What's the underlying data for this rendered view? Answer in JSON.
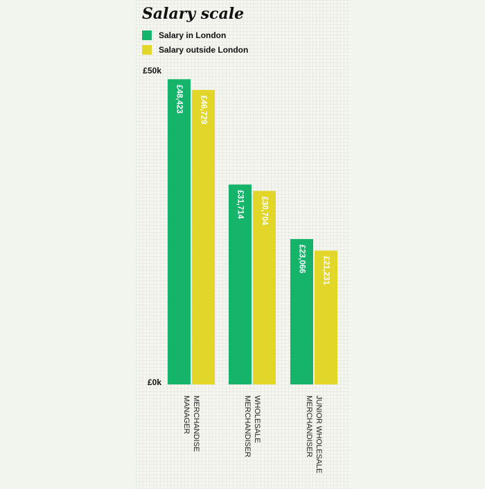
{
  "title": "Salary scale",
  "colors": {
    "london": "#16b46a",
    "outside": "#e2d62a"
  },
  "legend": [
    {
      "label": "Salary in London",
      "color": "#16b46a"
    },
    {
      "label": "Salary outside London",
      "color": "#e2d62a"
    }
  ],
  "chart_data": {
    "type": "bar",
    "title": "Salary scale",
    "categories": [
      [
        "MERCHANDISE",
        "MANAGER"
      ],
      [
        "WHOLESALE",
        "MERCHANDISER"
      ],
      [
        "JUNIOR WHOLESALE",
        "MERCHANDISER"
      ]
    ],
    "series": [
      {
        "name": "Salary in London",
        "color": "#16b46a",
        "values": [
          48423,
          31714,
          23066
        ],
        "labels": [
          "£48,423",
          "£31,714",
          "£23,066"
        ]
      },
      {
        "name": "Salary outside London",
        "color": "#e2d62a",
        "values": [
          46729,
          30704,
          21231
        ],
        "labels": [
          "£46,729",
          "£30,704",
          "£21,231"
        ]
      }
    ],
    "ylim": [
      0,
      50000
    ],
    "ytick_labels": [
      "£50k",
      "£0k"
    ],
    "grid": false,
    "legend_position": "top-left"
  }
}
